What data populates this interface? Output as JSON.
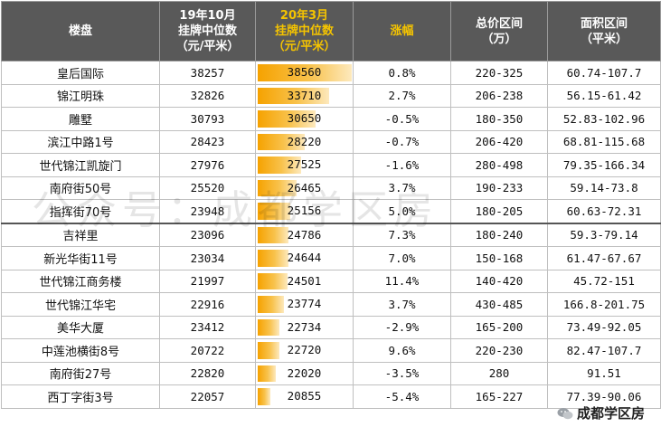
{
  "header": {
    "col_name": "楼盘",
    "col_oct": [
      "19年10月",
      "挂牌中位数",
      "（元/平米）"
    ],
    "col_mar": [
      "20年3月",
      "挂牌中位数",
      "（元/平米）"
    ],
    "col_change": "涨幅",
    "col_total": [
      "总价区间",
      "（万）"
    ],
    "col_area": [
      "面积区间",
      "（平米）"
    ]
  },
  "rows": [
    {
      "name": "皇后国际",
      "oct": "38257",
      "mar": "38560",
      "mar_value": 38560,
      "change": "0.8%",
      "total": "220-325",
      "area": "60.74-107.7"
    },
    {
      "name": "锦江明珠",
      "oct": "32826",
      "mar": "33710",
      "mar_value": 33710,
      "change": "2.7%",
      "total": "206-238",
      "area": "56.15-61.42"
    },
    {
      "name": "雕墅",
      "oct": "30793",
      "mar": "30650",
      "mar_value": 30650,
      "change": "-0.5%",
      "total": "180-350",
      "area": "52.83-102.96"
    },
    {
      "name": "滨江中路1号",
      "oct": "28423",
      "mar": "28220",
      "mar_value": 28220,
      "change": "-0.7%",
      "total": "206-420",
      "area": "68.81-115.68"
    },
    {
      "name": "世代锦江凯旋门",
      "oct": "27976",
      "mar": "27525",
      "mar_value": 27525,
      "change": "-1.6%",
      "total": "280-498",
      "area": "79.35-166.34"
    },
    {
      "name": "南府街50号",
      "oct": "25520",
      "mar": "26465",
      "mar_value": 26465,
      "change": "3.7%",
      "total": "190-233",
      "area": "59.14-73.8"
    },
    {
      "name": "指挥街70号",
      "oct": "23948",
      "mar": "25156",
      "mar_value": 25156,
      "change": "5.0%",
      "total": "180-205",
      "area": "60.63-72.31"
    },
    {
      "name": "吉祥里",
      "oct": "23096",
      "mar": "24786",
      "mar_value": 24786,
      "change": "7.3%",
      "total": "180-240",
      "area": "59.3-79.14"
    },
    {
      "name": "新光华街11号",
      "oct": "23034",
      "mar": "24644",
      "mar_value": 24644,
      "change": "7.0%",
      "total": "150-168",
      "area": "61.47-67.67"
    },
    {
      "name": "世代锦江商务楼",
      "oct": "21997",
      "mar": "24501",
      "mar_value": 24501,
      "change": "11.4%",
      "total": "140-420",
      "area": "45.72-151"
    },
    {
      "name": "世代锦江华宅",
      "oct": "22916",
      "mar": "23774",
      "mar_value": 23774,
      "change": "3.7%",
      "total": "430-485",
      "area": "166.8-201.75"
    },
    {
      "name": "美华大厦",
      "oct": "23412",
      "mar": "22734",
      "mar_value": 22734,
      "change": "-2.9%",
      "total": "165-200",
      "area": "73.49-92.05"
    },
    {
      "name": "中莲池横街8号",
      "oct": "20722",
      "mar": "22720",
      "mar_value": 22720,
      "change": "9.6%",
      "total": "220-230",
      "area": "82.47-107.7"
    },
    {
      "name": "南府街27号",
      "oct": "22820",
      "mar": "22020",
      "mar_value": 22020,
      "change": "-3.5%",
      "total": "280",
      "area": "91.51"
    },
    {
      "name": "西丁字街3号",
      "oct": "22057",
      "mar": "20855",
      "mar_value": 20855,
      "change": "-5.4%",
      "total": "165-227",
      "area": "77.39-90.06"
    }
  ],
  "watermark": "公众号：成都学区房",
  "brand": "成都学区房",
  "brand_icon": "wechat-icon",
  "colors": {
    "header_bg": "#595959",
    "header_text": "#ffffff",
    "highlight_text": "#f5c400",
    "bar": "#f6a200"
  }
}
